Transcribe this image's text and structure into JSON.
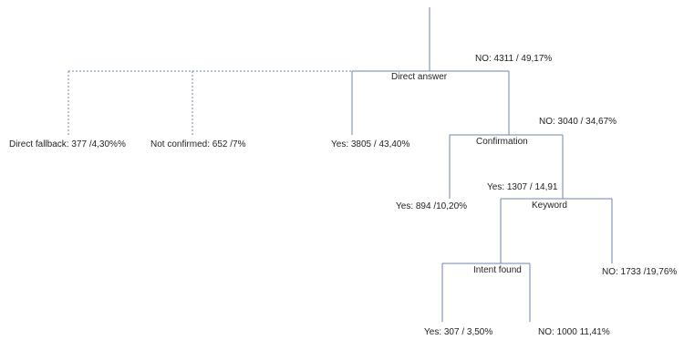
{
  "colors": {
    "line": "#6f85ad",
    "text": "#222222",
    "background": "#ffffff"
  },
  "nodes": {
    "direct_answer": "Direct answer",
    "confirmation": "Confirmation",
    "keyword": "Keyword",
    "intent_found": "Intent found"
  },
  "edges": {
    "no_4311": "NO: 4311 / 49,17%",
    "direct_fallback": "Direct fallback: 377 /4,30%%",
    "not_confirmed": "Not confirmed: 652 /7%",
    "yes_3805": "Yes: 3805 / 43,40%",
    "no_3040": "NO: 3040 / 34,67%",
    "yes_1307": "Yes: 1307 / 14,91",
    "yes_894": "Yes: 894 /10,20%",
    "no_1733": "NO: 1733 /19,76%",
    "yes_307": "Yes: 307 / 3,50%",
    "no_1000": "NO: 1000 11,41%"
  }
}
